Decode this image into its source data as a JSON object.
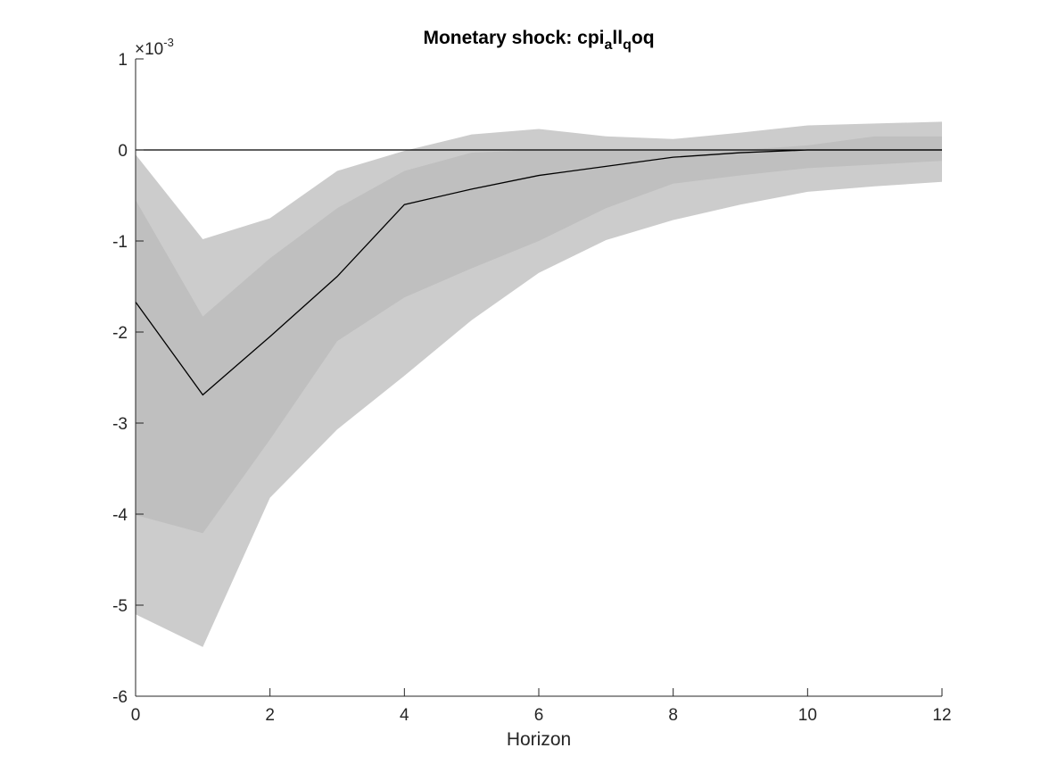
{
  "chart_data": {
    "type": "area",
    "title": {
      "main": "Monetary shock: cpi",
      "sub1": "a",
      "mid": "ll",
      "sub2": "q",
      "tail": "oq"
    },
    "xlabel": "Horizon",
    "ylabel": "",
    "xlim": [
      0,
      12
    ],
    "ylim": [
      -0.006,
      0.001
    ],
    "x_ticks": [
      "0",
      "2",
      "4",
      "6",
      "8",
      "10",
      "12"
    ],
    "y_ticks": [
      "1",
      "0",
      "-1",
      "-2",
      "-3",
      "-4",
      "-5",
      "-6"
    ],
    "y_exponent": {
      "base": "×10",
      "power": "-3"
    },
    "x": [
      0,
      1,
      2,
      3,
      4,
      5,
      6,
      7,
      8,
      9,
      10,
      11,
      12
    ],
    "series": [
      {
        "kind": "band-outer",
        "upper": [
          -5e-05,
          -0.00098,
          -0.00075,
          -0.00023,
          -1e-05,
          0.00017,
          0.00023,
          0.00015,
          0.00012,
          0.00019,
          0.00027,
          0.00029,
          0.00031
        ],
        "lower": [
          -0.0051,
          -0.00546,
          -0.00382,
          -0.00307,
          -0.00248,
          -0.00187,
          -0.00135,
          -0.00099,
          -0.00077,
          -0.0006,
          -0.00046,
          -0.0004,
          -0.00035
        ]
      },
      {
        "kind": "band-inner",
        "upper": [
          -0.00055,
          -0.00183,
          -0.00119,
          -0.00064,
          -0.00023,
          -3e-05,
          0.0,
          0.0,
          0.0,
          0.0,
          5e-05,
          0.00015,
          0.00015
        ],
        "lower": [
          -0.00401,
          -0.00421,
          -0.00318,
          -0.0021,
          -0.00162,
          -0.0013,
          -0.001,
          -0.00064,
          -0.00037,
          -0.00028,
          -0.0002,
          -0.00016,
          -0.00012
        ]
      },
      {
        "kind": "median",
        "values": [
          -0.00167,
          -0.00269,
          -0.00205,
          -0.00139,
          -0.0006,
          -0.00043,
          -0.00028,
          -0.00018,
          -8e-05,
          -3e-05,
          0.0,
          0.0,
          0.0
        ]
      }
    ],
    "zero_line": true,
    "grid": false,
    "legend": "none",
    "colors": {
      "outer_band": "#cccccc",
      "inner_band": "#bfbfbf",
      "median": "#000000",
      "zero_line": "#000000",
      "axis": "#262626"
    }
  }
}
